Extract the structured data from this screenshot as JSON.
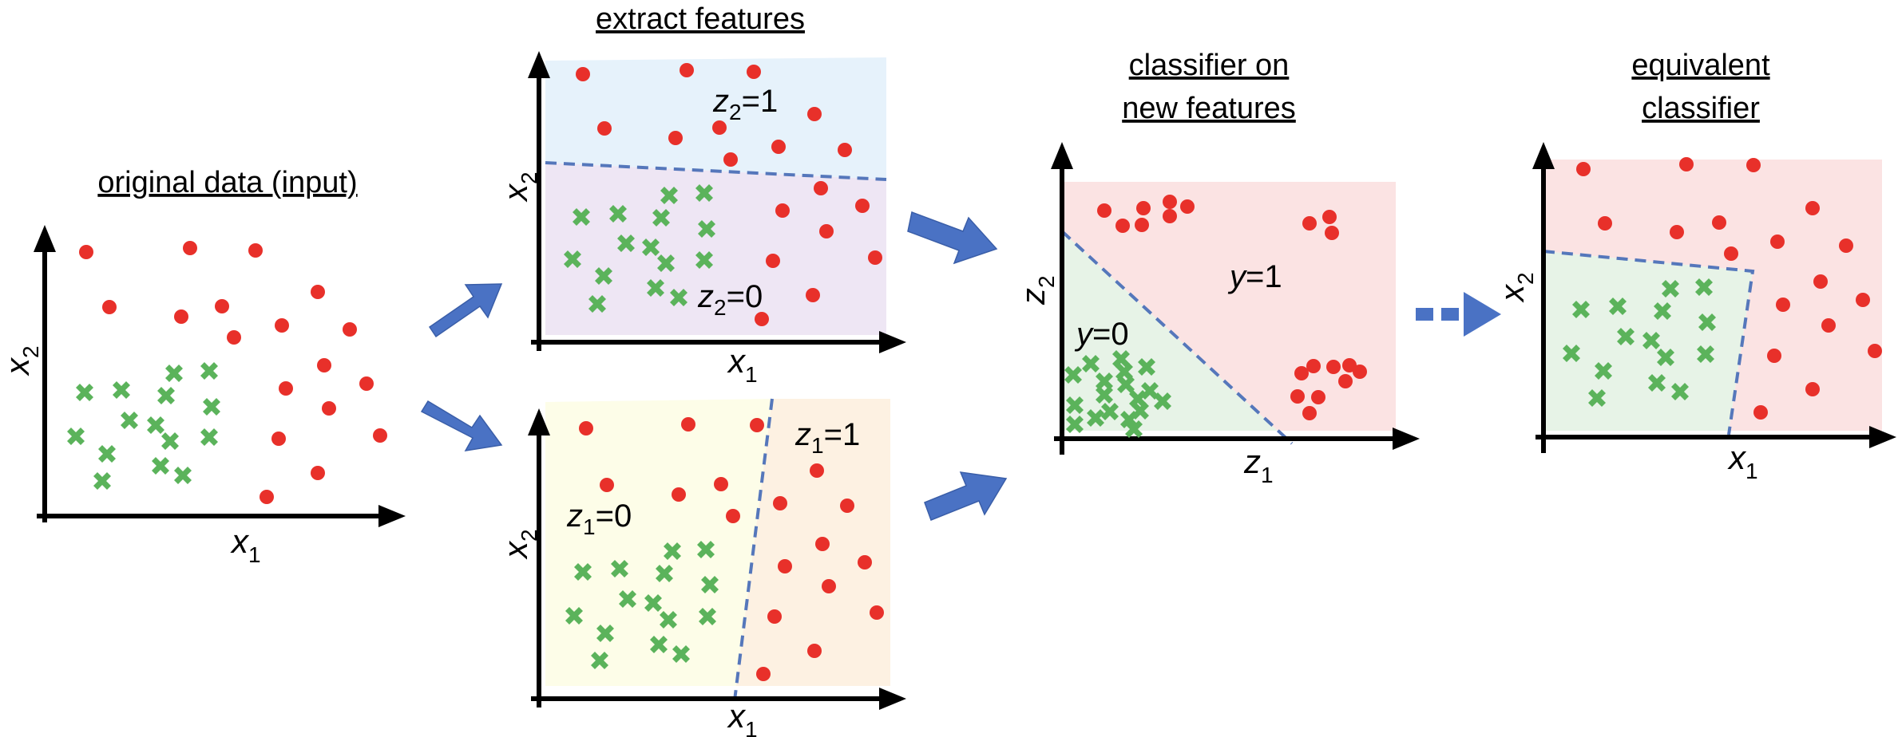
{
  "titles": {
    "original": "original data (input)",
    "extract": "extract features",
    "classifier_line1": "classifier on",
    "classifier_line2": "new features",
    "equivalent_line1": "equivalent",
    "equivalent_line2": "classifier"
  },
  "axis": {
    "x": "x",
    "x_sub": "1",
    "x2": "x",
    "x2_sub": "2",
    "z1": "z",
    "z1_sub": "1",
    "z2": "z",
    "z2_sub": "2"
  },
  "regions": {
    "z2_one": {
      "var": "z",
      "sub": "2",
      "eq": "=1"
    },
    "z2_zero": {
      "var": "z",
      "sub": "2",
      "eq": "=0"
    },
    "z1_zero": {
      "var": "z",
      "sub": "1",
      "eq": "=0"
    },
    "z1_one": {
      "var": "z",
      "sub": "1",
      "eq": "=1"
    },
    "y_zero": {
      "var": "y",
      "eq": "=0"
    },
    "y_one": {
      "var": "y",
      "eq": "=1"
    }
  },
  "colors": {
    "class_red": "#e8302a",
    "class_green": "#5bb35b",
    "arrow_blue": "#4a72c4",
    "boundary_blue": "#5577bb",
    "region_blue": "#e6f2fb",
    "region_purple": "#eee6f4",
    "region_yellow": "#fdfde8",
    "region_orange": "#fdf1e2",
    "region_pink": "#fbe3e3",
    "region_green": "#e7f3e7"
  },
  "icons": [
    "flow-arrow-icon",
    "dashed-flow-arrow-icon"
  ]
}
